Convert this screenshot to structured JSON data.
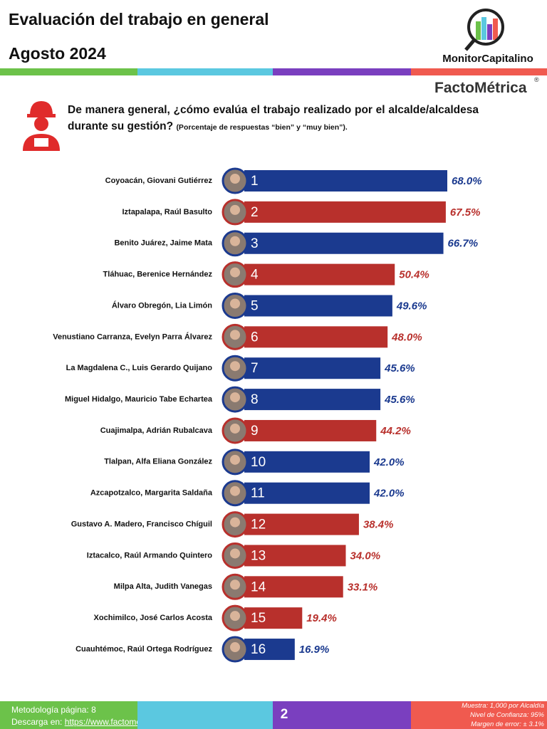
{
  "header": {
    "title": "Evaluación del trabajo en general",
    "date": "Agosto 2024",
    "logo": "MonitorCapitalino",
    "brand": "FactoMétrica",
    "brand_mark": "®"
  },
  "chart_data": {
    "type": "hbar",
    "title": "De manera general, ¿cómo evalúa el trabajo realizado por el alcalde/alcaldesa durante su gestión?",
    "subtitle": "(Porcentaje de respuestas “bien” y “muy bien”).",
    "categories": [
      "Coyoacán, Giovani Gutiérrez",
      "Iztapalapa, Raúl Basulto",
      "Benito Juárez, Jaime Mata",
      "Tláhuac, Berenice Hernández",
      "Álvaro Obregón, Lia Limón",
      "Venustiano Carranza, Evelyn Parra Álvarez",
      "La Magdalena C., Luis Gerardo Quijano",
      "Miguel Hidalgo, Mauricio Tabe Echartea",
      "Cuajimalpa, Adrián Rubalcava",
      "Tlalpan, Alfa Eliana González",
      "Azcapotzalco, Margarita Saldaña",
      "Gustavo A. Madero, Francisco Chíguil",
      "Iztacalco, Raúl Armando Quintero",
      "Milpa Alta, Judith Vanegas",
      "Xochimilco, José Carlos Acosta",
      "Cuauhtémoc, Raúl Ortega Rodríguez"
    ],
    "ranks": [
      1,
      2,
      3,
      4,
      5,
      6,
      7,
      8,
      9,
      10,
      11,
      12,
      13,
      14,
      15,
      16
    ],
    "values": [
      68.0,
      67.5,
      66.7,
      50.4,
      49.6,
      48.0,
      45.6,
      45.6,
      44.2,
      42.0,
      42.0,
      38.4,
      34.0,
      33.1,
      19.4,
      16.9
    ],
    "value_labels": [
      "68.0%",
      "67.5%",
      "66.7%",
      "50.4%",
      "49.6%",
      "48.0%",
      "45.6%",
      "45.6%",
      "44.2%",
      "42.0%",
      "42.0%",
      "38.4%",
      "34.0%",
      "33.1%",
      "19.4%",
      "16.9%"
    ],
    "colors": [
      "#1b3a8f",
      "#b8302c",
      "#1b3a8f",
      "#b8302c",
      "#1b3a8f",
      "#b8302c",
      "#1b3a8f",
      "#1b3a8f",
      "#b8302c",
      "#1b3a8f",
      "#1b3a8f",
      "#b8302c",
      "#b8302c",
      "#b8302c",
      "#b8302c",
      "#1b3a8f"
    ]
  },
  "footer": {
    "methodology": "Metodología página: 8",
    "download": "Descarga en:",
    "url": "https://www.factometrica.com",
    "page": "2",
    "sample": "Muestra: 1,000 por Alcaldía",
    "confidence": "Nivel de Confianza: 95%",
    "error": "Margen de error: ± 3.1%"
  }
}
